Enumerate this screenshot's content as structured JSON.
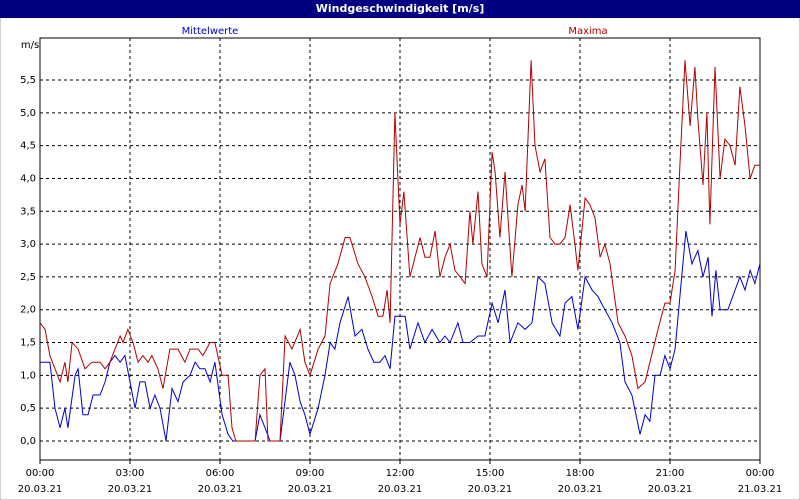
{
  "chart_data": {
    "type": "line",
    "title": "Windgeschwindigkeit [m/s]",
    "y_label": "m/s",
    "xlim": [
      0,
      24
    ],
    "ylim": [
      -0.29,
      6.14
    ],
    "grid": true,
    "xticks": [
      {
        "value": 0,
        "label": "00:00",
        "sublabel": "20.03.21"
      },
      {
        "value": 3,
        "label": "03:00",
        "sublabel": "20.03.21"
      },
      {
        "value": 6,
        "label": "06:00",
        "sublabel": "20.03.21"
      },
      {
        "value": 9,
        "label": "09:00",
        "sublabel": "20.03.21"
      },
      {
        "value": 12,
        "label": "12:00",
        "sublabel": "20.03.21"
      },
      {
        "value": 15,
        "label": "15:00",
        "sublabel": "20.03.21"
      },
      {
        "value": 18,
        "label": "18:00",
        "sublabel": "20.03.21"
      },
      {
        "value": 21,
        "label": "21:00",
        "sublabel": "20.03.21"
      },
      {
        "value": 24,
        "label": "00:00",
        "sublabel": "21.03.21"
      }
    ],
    "yticks": [
      {
        "value": 0,
        "label": "0,0"
      },
      {
        "value": 0.5,
        "label": "0,5"
      },
      {
        "value": 1,
        "label": "1,0"
      },
      {
        "value": 1.5,
        "label": "1,5"
      },
      {
        "value": 2,
        "label": "2,0"
      },
      {
        "value": 2.5,
        "label": "2,5"
      },
      {
        "value": 3,
        "label": "3,0"
      },
      {
        "value": 3.5,
        "label": "3,5"
      },
      {
        "value": 4,
        "label": "4,0"
      },
      {
        "value": 4.5,
        "label": "4,5"
      },
      {
        "value": 5,
        "label": "5,0"
      },
      {
        "value": 5.5,
        "label": "5,5"
      }
    ],
    "series": [
      {
        "name": "Mittelwerte",
        "color": "#0000cc",
        "x": [
          0,
          0.33,
          0.5,
          0.67,
          0.83,
          0.93,
          1.17,
          1.27,
          1.43,
          1.6,
          1.77,
          2,
          2.17,
          2.33,
          2.5,
          2.67,
          2.83,
          3,
          3.17,
          3.33,
          3.5,
          3.67,
          3.83,
          4,
          4.2,
          4.4,
          4.6,
          4.77,
          5,
          5.17,
          5.33,
          5.5,
          5.67,
          5.83,
          6.07,
          6.27,
          6.43,
          7.17,
          7.33,
          7.5,
          7.67,
          8,
          8.33,
          8.5,
          8.67,
          8.83,
          9,
          9.27,
          9.5,
          9.67,
          9.83,
          10,
          10.27,
          10.5,
          10.73,
          10.93,
          11.13,
          11.33,
          11.5,
          11.67,
          11.83,
          12.17,
          12.33,
          12.6,
          12.83,
          13.07,
          13.33,
          13.5,
          13.67,
          13.93,
          14.1,
          14.33,
          14.6,
          14.83,
          15.07,
          15.27,
          15.5,
          15.67,
          15.93,
          16.17,
          16.4,
          16.6,
          16.83,
          17.07,
          17.33,
          17.5,
          17.73,
          17.93,
          18.17,
          18.4,
          18.6,
          18.83,
          19.07,
          19.33,
          19.5,
          19.73,
          20,
          20.17,
          20.33,
          20.5,
          20.67,
          20.83,
          21,
          21.17,
          21.33,
          21.53,
          21.73,
          21.93,
          22.1,
          22.27,
          22.4,
          22.53,
          22.67,
          22.93,
          23.17,
          23.33,
          23.5,
          23.67,
          23.83,
          24
        ],
        "values": [
          1.2,
          1.2,
          0.5,
          0.2,
          0.5,
          0.2,
          1.0,
          1.1,
          0.4,
          0.4,
          0.7,
          0.7,
          0.9,
          1.2,
          1.3,
          1.2,
          1.3,
          0.9,
          0.5,
          0.9,
          0.9,
          0.5,
          0.7,
          0.5,
          0.0,
          0.8,
          0.6,
          0.9,
          1.0,
          1.2,
          1.1,
          1.1,
          0.9,
          1.2,
          0.4,
          0.1,
          0.0,
          0.0,
          0.4,
          0.2,
          0.0,
          0.0,
          1.2,
          1.0,
          0.6,
          0.4,
          0.1,
          0.5,
          1.0,
          1.5,
          1.4,
          1.8,
          2.2,
          1.6,
          1.7,
          1.4,
          1.2,
          1.2,
          1.3,
          1.1,
          1.9,
          1.9,
          1.4,
          1.8,
          1.5,
          1.7,
          1.5,
          1.6,
          1.5,
          1.8,
          1.5,
          1.5,
          1.6,
          1.6,
          2.1,
          1.8,
          2.3,
          1.5,
          1.8,
          1.7,
          1.8,
          2.5,
          2.4,
          1.8,
          1.6,
          2.1,
          2.2,
          1.7,
          2.5,
          2.3,
          2.2,
          2.0,
          1.8,
          1.5,
          0.9,
          0.7,
          0.1,
          0.4,
          0.3,
          1.0,
          1.0,
          1.3,
          1.1,
          1.4,
          2.2,
          3.2,
          2.7,
          2.9,
          2.5,
          2.8,
          1.9,
          2.6,
          2.0,
          2.0,
          2.3,
          2.5,
          2.3,
          2.6,
          2.4,
          2.7
        ]
      },
      {
        "name": "Maxima",
        "color": "#b00000",
        "x": [
          0,
          0.17,
          0.33,
          0.5,
          0.67,
          0.83,
          0.93,
          1.07,
          1.27,
          1.5,
          1.73,
          2,
          2.17,
          2.33,
          2.5,
          2.67,
          2.77,
          2.93,
          3.1,
          3.27,
          3.43,
          3.6,
          3.73,
          3.93,
          4.1,
          4.33,
          4.6,
          4.83,
          5,
          5.27,
          5.43,
          5.67,
          5.83,
          6.07,
          6.27,
          6.4,
          6.53,
          7.17,
          7.33,
          7.5,
          7.6,
          8,
          8.17,
          8.4,
          8.67,
          8.83,
          9,
          9.27,
          9.5,
          9.67,
          9.93,
          10.17,
          10.33,
          10.6,
          10.83,
          11.07,
          11.27,
          11.43,
          11.57,
          11.67,
          11.83,
          12,
          12.13,
          12.33,
          12.5,
          12.67,
          12.83,
          13,
          13.17,
          13.33,
          13.5,
          13.67,
          13.83,
          14,
          14.17,
          14.33,
          14.43,
          14.6,
          14.73,
          14.9,
          15.07,
          15.17,
          15.33,
          15.5,
          15.73,
          15.93,
          16.07,
          16.17,
          16.37,
          16.5,
          16.67,
          16.83,
          17,
          17.17,
          17.33,
          17.5,
          17.67,
          17.83,
          17.93,
          18.17,
          18.33,
          18.5,
          18.67,
          18.83,
          19,
          19.27,
          19.5,
          19.73,
          19.93,
          20.17,
          20.33,
          20.6,
          20.83,
          21,
          21.17,
          21.33,
          21.5,
          21.67,
          21.83,
          21.93,
          22.1,
          22.23,
          22.33,
          22.5,
          22.67,
          22.83,
          23,
          23.17,
          23.33,
          23.5,
          23.67,
          23.83,
          24
        ],
        "values": [
          1.8,
          1.7,
          1.3,
          1.1,
          0.9,
          1.2,
          0.9,
          1.5,
          1.4,
          1.1,
          1.2,
          1.2,
          1.1,
          1.2,
          1.4,
          1.6,
          1.5,
          1.7,
          1.5,
          1.2,
          1.3,
          1.2,
          1.3,
          1.1,
          0.8,
          1.4,
          1.4,
          1.2,
          1.4,
          1.4,
          1.3,
          1.5,
          1.5,
          1.0,
          1.0,
          0.2,
          0.0,
          0.0,
          1.0,
          1.1,
          0.0,
          0.0,
          1.6,
          1.4,
          1.7,
          1.2,
          1.0,
          1.4,
          1.6,
          2.4,
          2.7,
          3.1,
          3.1,
          2.7,
          2.5,
          2.2,
          1.9,
          1.9,
          2.3,
          1.8,
          5.0,
          3.3,
          3.8,
          2.5,
          2.8,
          3.1,
          2.8,
          2.8,
          3.2,
          2.5,
          2.8,
          3.0,
          2.6,
          2.5,
          2.4,
          3.5,
          3.0,
          3.8,
          2.7,
          2.5,
          4.4,
          4.1,
          3.1,
          4.1,
          2.5,
          3.6,
          3.9,
          3.5,
          5.8,
          4.5,
          4.1,
          4.3,
          3.1,
          3.0,
          3.0,
          3.1,
          3.6,
          3.0,
          2.6,
          3.7,
          3.6,
          3.4,
          2.8,
          3.0,
          2.7,
          1.8,
          1.6,
          1.3,
          0.8,
          0.9,
          1.2,
          1.7,
          2.1,
          2.1,
          2.6,
          4.2,
          5.8,
          4.8,
          5.7,
          4.9,
          3.9,
          5.0,
          3.3,
          5.7,
          4.0,
          4.6,
          4.5,
          4.2,
          5.4,
          4.8,
          4.0,
          4.2,
          4.2
        ]
      }
    ]
  }
}
